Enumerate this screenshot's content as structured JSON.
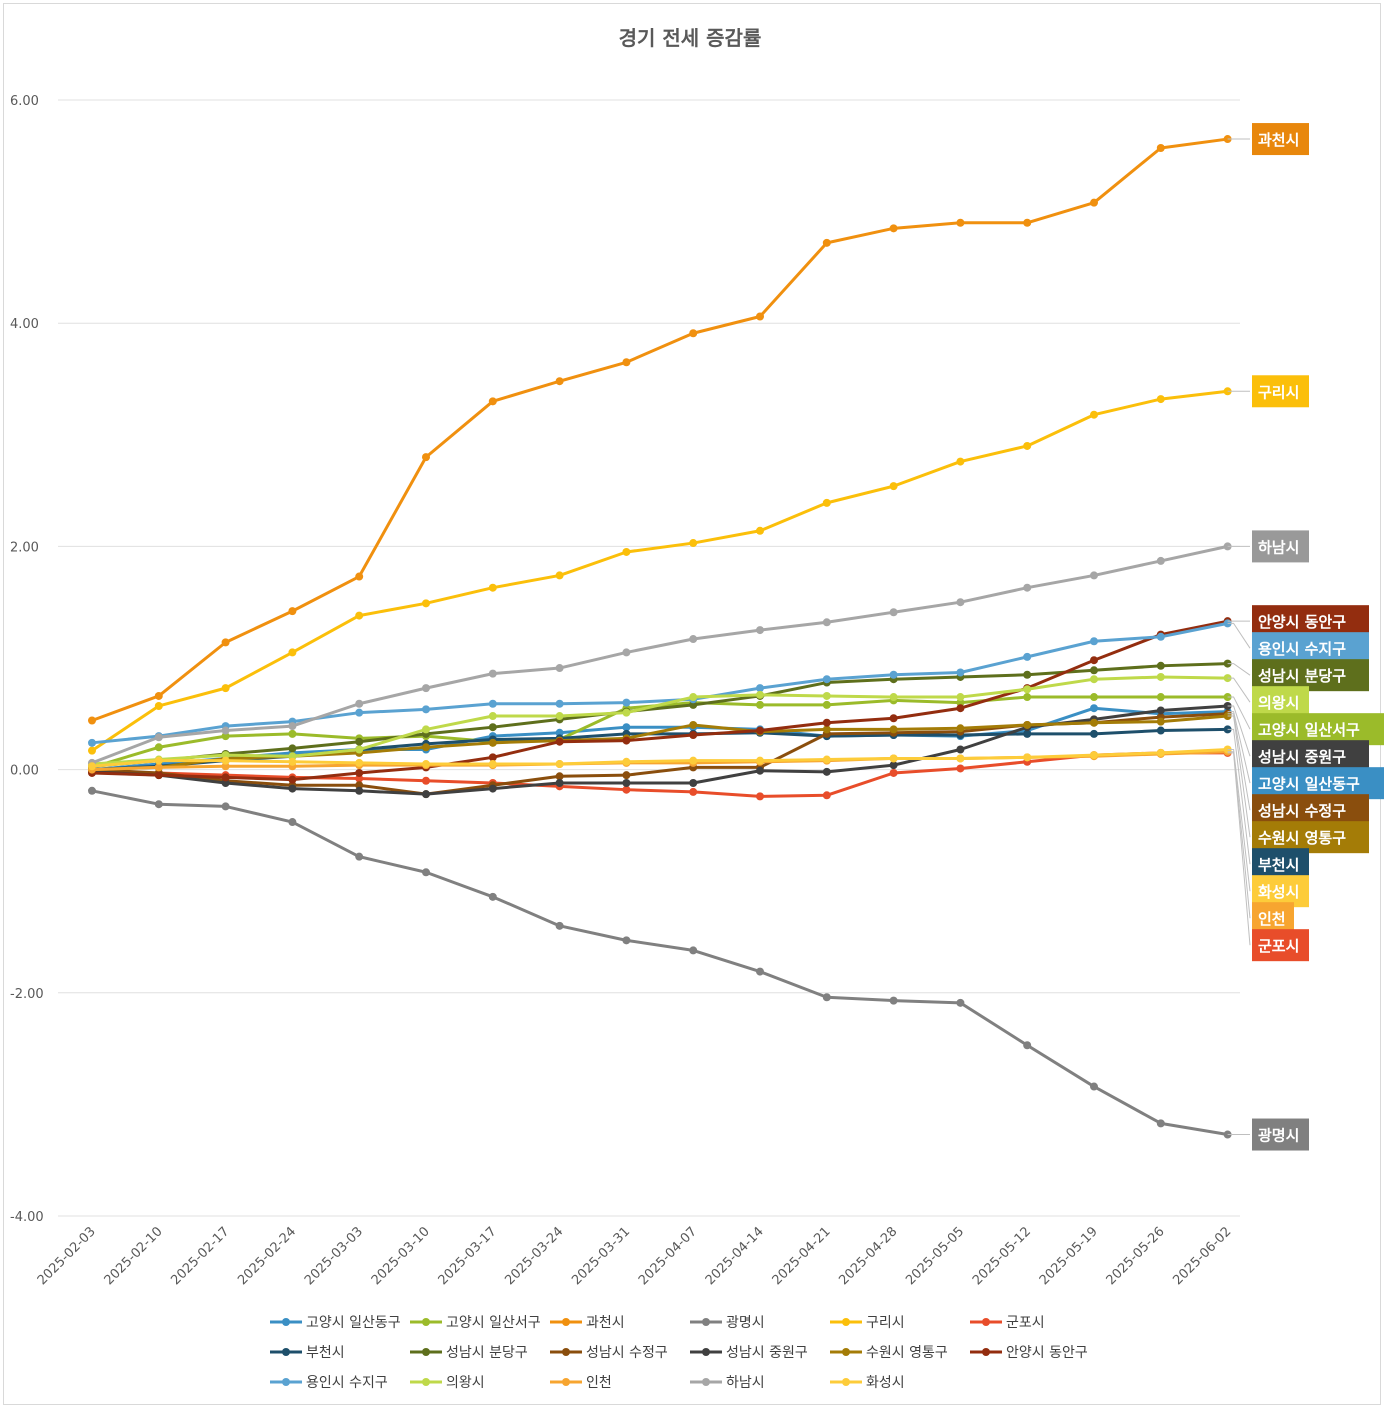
{
  "chart_data": {
    "type": "line",
    "title": "경기 전세 증감률",
    "xlabel": "",
    "ylabel": "",
    "ylim": [
      -4,
      6
    ],
    "yticks": [
      "6.00",
      "4.00",
      "2.00",
      "0.00",
      "-2.00",
      "-4.00"
    ],
    "ytick_values": [
      6,
      4,
      2,
      0,
      -2,
      -4
    ],
    "grid": "horizontal",
    "legend_position": "bottom",
    "categories": [
      "2025-02-03",
      "2025-02-10",
      "2025-02-17",
      "2025-02-24",
      "2025-03-03",
      "2025-03-10",
      "2025-03-17",
      "2025-03-24",
      "2025-03-31",
      "2025-04-07",
      "2025-04-14",
      "2025-04-21",
      "2025-04-28",
      "2025-05-05",
      "2025-05-12",
      "2025-05-19",
      "2025-05-26",
      "2025-06-02"
    ],
    "series": [
      {
        "name": "고양시 일산동구",
        "color": "#3a8fc4",
        "values": [
          0.0,
          0.05,
          0.1,
          0.15,
          0.18,
          0.18,
          0.3,
          0.33,
          0.38,
          0.38,
          0.36,
          0.3,
          0.31,
          0.3,
          0.35,
          0.55,
          0.5,
          0.52
        ]
      },
      {
        "name": "고양시 일산서구",
        "color": "#9bbb2a",
        "values": [
          0.02,
          0.2,
          0.3,
          0.32,
          0.28,
          0.3,
          0.25,
          0.27,
          0.55,
          0.6,
          0.58,
          0.58,
          0.62,
          0.6,
          0.65,
          0.65,
          0.65,
          0.65
        ]
      },
      {
        "name": "과천시",
        "color": "#f0900f",
        "values": [
          0.44,
          0.66,
          1.14,
          1.42,
          1.73,
          2.8,
          3.3,
          3.48,
          3.65,
          3.91,
          4.06,
          4.72,
          4.85,
          4.9,
          4.9,
          5.08,
          5.57,
          5.65
        ]
      },
      {
        "name": "광명시",
        "color": "#808080",
        "values": [
          -0.19,
          -0.31,
          -0.33,
          -0.47,
          -0.78,
          -0.92,
          -1.14,
          -1.4,
          -1.53,
          -1.62,
          -1.81,
          -2.04,
          -2.07,
          -2.09,
          -2.47,
          -2.84,
          -3.17,
          -3.27
        ]
      },
      {
        "name": "구리시",
        "color": "#fbbf0a",
        "values": [
          0.17,
          0.57,
          0.73,
          1.05,
          1.38,
          1.49,
          1.63,
          1.74,
          1.95,
          2.03,
          2.14,
          2.39,
          2.54,
          2.76,
          2.9,
          3.18,
          3.32,
          3.39
        ]
      },
      {
        "name": "군포시",
        "color": "#e84d2a",
        "values": [
          -0.02,
          -0.03,
          -0.05,
          -0.07,
          -0.08,
          -0.1,
          -0.12,
          -0.15,
          -0.18,
          -0.2,
          -0.24,
          -0.23,
          -0.03,
          0.01,
          0.07,
          0.13,
          0.15,
          0.15
        ]
      },
      {
        "name": "부천시",
        "color": "#1e4f6b",
        "values": [
          0.0,
          0.03,
          0.08,
          0.12,
          0.18,
          0.23,
          0.27,
          0.28,
          0.32,
          0.32,
          0.33,
          0.3,
          0.31,
          0.31,
          0.32,
          0.32,
          0.35,
          0.36
        ]
      },
      {
        "name": "성남시 분당구",
        "color": "#5e6f1c",
        "values": [
          0.03,
          0.08,
          0.14,
          0.19,
          0.25,
          0.32,
          0.38,
          0.45,
          0.52,
          0.58,
          0.66,
          0.78,
          0.81,
          0.83,
          0.85,
          0.89,
          0.93,
          0.95
        ]
      },
      {
        "name": "성남시 수정구",
        "color": "#8a4e0d",
        "values": [
          0.0,
          -0.03,
          -0.1,
          -0.14,
          -0.14,
          -0.22,
          -0.14,
          -0.06,
          -0.05,
          0.02,
          0.02,
          0.32,
          0.33,
          0.34,
          0.4,
          0.42,
          0.47,
          0.5
        ]
      },
      {
        "name": "성남시 중원구",
        "color": "#404040",
        "values": [
          -0.02,
          -0.05,
          -0.12,
          -0.17,
          -0.19,
          -0.22,
          -0.17,
          -0.12,
          -0.12,
          -0.12,
          -0.01,
          -0.02,
          0.04,
          0.18,
          0.38,
          0.45,
          0.53,
          0.57
        ]
      },
      {
        "name": "수원시 영통구",
        "color": "#a47c07",
        "values": [
          0.0,
          0.02,
          0.1,
          0.12,
          0.15,
          0.2,
          0.24,
          0.26,
          0.28,
          0.4,
          0.34,
          0.36,
          0.36,
          0.37,
          0.4,
          0.42,
          0.43,
          0.48
        ]
      },
      {
        "name": "안양시 동안구",
        "color": "#932d0f",
        "values": [
          -0.03,
          -0.05,
          -0.07,
          -0.09,
          -0.03,
          0.02,
          0.11,
          0.25,
          0.26,
          0.31,
          0.35,
          0.42,
          0.46,
          0.55,
          0.73,
          0.98,
          1.21,
          1.33
        ]
      },
      {
        "name": "용인시 수지구",
        "color": "#5aa2d1",
        "values": [
          0.24,
          0.3,
          0.39,
          0.43,
          0.51,
          0.54,
          0.59,
          0.59,
          0.6,
          0.63,
          0.73,
          0.81,
          0.85,
          0.87,
          1.01,
          1.15,
          1.19,
          1.31
        ]
      },
      {
        "name": "의왕시",
        "color": "#bfd94a",
        "values": [
          0.05,
          0.09,
          0.13,
          0.12,
          0.18,
          0.36,
          0.48,
          0.48,
          0.51,
          0.65,
          0.67,
          0.66,
          0.65,
          0.65,
          0.72,
          0.81,
          0.83,
          0.82
        ]
      },
      {
        "name": "인천",
        "color": "#f7a530",
        "values": [
          0.0,
          0.02,
          0.03,
          0.03,
          0.04,
          0.04,
          0.04,
          0.05,
          0.06,
          0.06,
          0.07,
          0.08,
          0.1,
          0.1,
          0.11,
          0.12,
          0.14,
          0.16
        ]
      },
      {
        "name": "하남시",
        "color": "#a6a6a6",
        "values": [
          0.06,
          0.29,
          0.35,
          0.39,
          0.59,
          0.73,
          0.86,
          0.91,
          1.05,
          1.17,
          1.25,
          1.32,
          1.41,
          1.5,
          1.63,
          1.74,
          1.87,
          2.0
        ]
      },
      {
        "name": "화성시",
        "color": "#fdcc3a",
        "values": [
          0.03,
          0.08,
          0.08,
          0.07,
          0.06,
          0.05,
          0.05,
          0.05,
          0.07,
          0.08,
          0.08,
          0.09,
          0.1,
          0.1,
          0.11,
          0.13,
          0.15,
          0.18
        ]
      }
    ],
    "end_labels": [
      {
        "series": "과천시",
        "text": "과천시",
        "bg": "#e8870c"
      },
      {
        "series": "구리시",
        "text": "구리시",
        "bg": "#fbbf0a"
      },
      {
        "series": "하남시",
        "text": "하남시",
        "bg": "#999999"
      },
      {
        "series": "안양시 동안구",
        "text": "안양시 동안구",
        "bg": "#932d0f"
      },
      {
        "series": "용인시 수지구",
        "text": "용인시 수지구",
        "bg": "#5aa2d1"
      },
      {
        "series": "성남시 분당구",
        "text": "성남시 분당구",
        "bg": "#5e6f1c"
      },
      {
        "series": "의왕시",
        "text": "의왕시",
        "bg": "#bfd94a"
      },
      {
        "series": "고양시 일산서구",
        "text": "고양시 일산서구",
        "bg": "#9bbb2a"
      },
      {
        "series": "성남시 중원구",
        "text": "성남시 중원구",
        "bg": "#404040"
      },
      {
        "series": "성남시 수정구",
        "text": "성남시 수정구",
        "bg": "#8a4e0d"
      },
      {
        "series": "고양시 일산동구",
        "text": "고양시 일산동구",
        "bg": "#3a8fc4"
      },
      {
        "series": "수원시 영통구",
        "text": "수원시 영통구",
        "bg": "#a47c07"
      },
      {
        "series": "부천시",
        "text": "부천시",
        "bg": "#1e4f6b"
      },
      {
        "series": "화성시",
        "text": "화성시",
        "bg": "#fdcc3a"
      },
      {
        "series": "인천",
        "text": "인천",
        "bg": "#f7a530"
      },
      {
        "series": "군포시",
        "text": "군포시",
        "bg": "#e84d2a"
      },
      {
        "series": "광명시",
        "text": "광명시",
        "bg": "#808080"
      }
    ]
  }
}
